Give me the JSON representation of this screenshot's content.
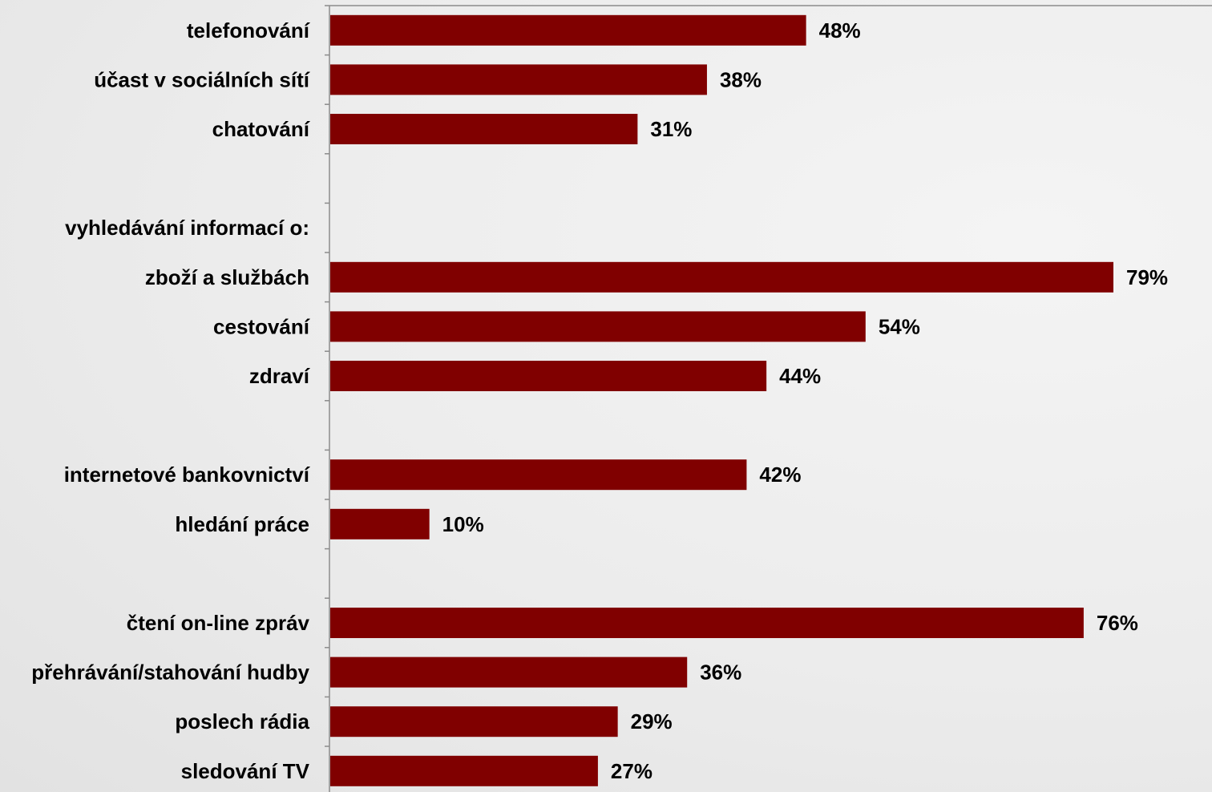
{
  "chart_data": {
    "type": "bar",
    "orientation": "horizontal",
    "value_suffix": "%",
    "xlim": [
      0,
      100
    ],
    "bar_color": "#800000",
    "axis_color": "#8c8c8c",
    "grid": false,
    "rows": [
      {
        "label": "telefonování",
        "value": 48
      },
      {
        "label": "účast v sociálních sítí",
        "value": 38
      },
      {
        "label": "chatování",
        "value": 31
      },
      {
        "label": "",
        "value": null
      },
      {
        "label": "vyhledávání informací o:",
        "value": null
      },
      {
        "label": "zboží a službách",
        "value": 79
      },
      {
        "label": "cestování",
        "value": 54
      },
      {
        "label": "zdraví",
        "value": 44
      },
      {
        "label": "",
        "value": null
      },
      {
        "label": "internetové bankovnictví",
        "value": 42
      },
      {
        "label": "hledání práce",
        "value": 10
      },
      {
        "label": "",
        "value": null
      },
      {
        "label": "čtení on-line zpráv",
        "value": 76
      },
      {
        "label": "přehrávání/stahování hudby",
        "value": 36
      },
      {
        "label": "poslech rádia",
        "value": 29
      },
      {
        "label": "sledování TV",
        "value": 27
      }
    ]
  }
}
